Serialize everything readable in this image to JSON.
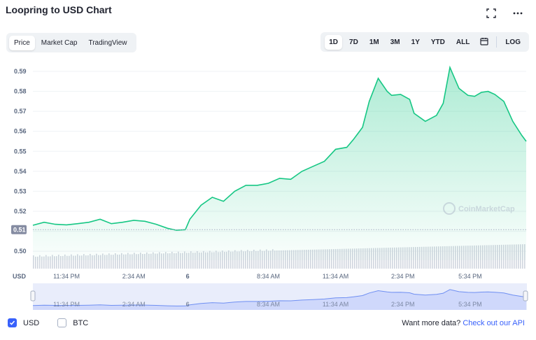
{
  "header": {
    "title": "Loopring to USD Chart"
  },
  "icons": {
    "fullscreen": "fullscreen-icon",
    "more": "more-icon",
    "calendar": "calendar-icon",
    "check": "check-icon"
  },
  "tabs": [
    {
      "label": "Price",
      "active": true
    },
    {
      "label": "Market Cap",
      "active": false
    },
    {
      "label": "TradingView",
      "active": false
    }
  ],
  "ranges": [
    {
      "label": "1D",
      "active": true
    },
    {
      "label": "7D",
      "active": false
    },
    {
      "label": "1M",
      "active": false
    },
    {
      "label": "3M",
      "active": false
    },
    {
      "label": "1Y",
      "active": false
    },
    {
      "label": "YTD",
      "active": false
    },
    {
      "label": "ALL",
      "active": false
    }
  ],
  "log_label": "LOG",
  "watermark": "CoinMarketCap",
  "legend": {
    "usd_label": "USD",
    "btc_label": "BTC",
    "usd_checked": true,
    "btc_checked": false
  },
  "footer": {
    "text": "Want more data?",
    "link": "Check out our API"
  },
  "colors": {
    "line": "#16c784",
    "brand": "#3861fb",
    "navigator": "#6f8ff2"
  },
  "chart_data": {
    "type": "area",
    "title": "",
    "xlabel": "",
    "ylabel": "USD",
    "y_ticks": [
      "0.59",
      "0.58",
      "0.57",
      "0.56",
      "0.55",
      "0.54",
      "0.53",
      "0.52",
      "0.51",
      "0.50"
    ],
    "ylim": [
      0.4955,
      0.597
    ],
    "x_ticks": [
      "11:34 PM",
      "2:34 AM",
      "6",
      "8:34 AM",
      "11:34 AM",
      "2:34 PM",
      "5:34 PM"
    ],
    "x_tick_hours": [
      1.5,
      4.5,
      6.9,
      10.5,
      13.5,
      16.5,
      19.5
    ],
    "current_price_label": "0.51",
    "current_price": 0.5108,
    "grid": true,
    "series": [
      {
        "values_x_hours": [
          0,
          0.5,
          1.0,
          1.5,
          2.0,
          2.5,
          3.0,
          3.5,
          4.0,
          4.5,
          5.0,
          5.5,
          6.0,
          6.4,
          6.8,
          7.0,
          7.5,
          8.0,
          8.5,
          9.0,
          9.5,
          10.0,
          10.5,
          11.0,
          11.5,
          12.0,
          12.5,
          13.0,
          13.5,
          14.0,
          14.3,
          14.7,
          15.0,
          15.4,
          15.8,
          16.0,
          16.4,
          16.8,
          17.0,
          17.5,
          18.0,
          18.3,
          18.6,
          19.0,
          19.4,
          19.7,
          20.0,
          20.3,
          20.6,
          21.0,
          21.4,
          21.8,
          22.0
        ],
        "values": [
          0.513,
          0.5145,
          0.5135,
          0.5132,
          0.5138,
          0.5145,
          0.516,
          0.5138,
          0.5145,
          0.5155,
          0.515,
          0.5135,
          0.5115,
          0.5105,
          0.5108,
          0.516,
          0.523,
          0.527,
          0.525,
          0.53,
          0.533,
          0.533,
          0.534,
          0.5365,
          0.536,
          0.54,
          0.5425,
          0.545,
          0.551,
          0.552,
          0.556,
          0.562,
          0.575,
          0.5865,
          0.58,
          0.578,
          0.5785,
          0.576,
          0.569,
          0.565,
          0.568,
          0.574,
          0.592,
          0.5815,
          0.578,
          0.5775,
          0.5795,
          0.58,
          0.5785,
          0.575,
          0.565,
          0.558,
          0.555
        ]
      }
    ],
    "x_domain_hours": [
      0,
      22
    ]
  }
}
